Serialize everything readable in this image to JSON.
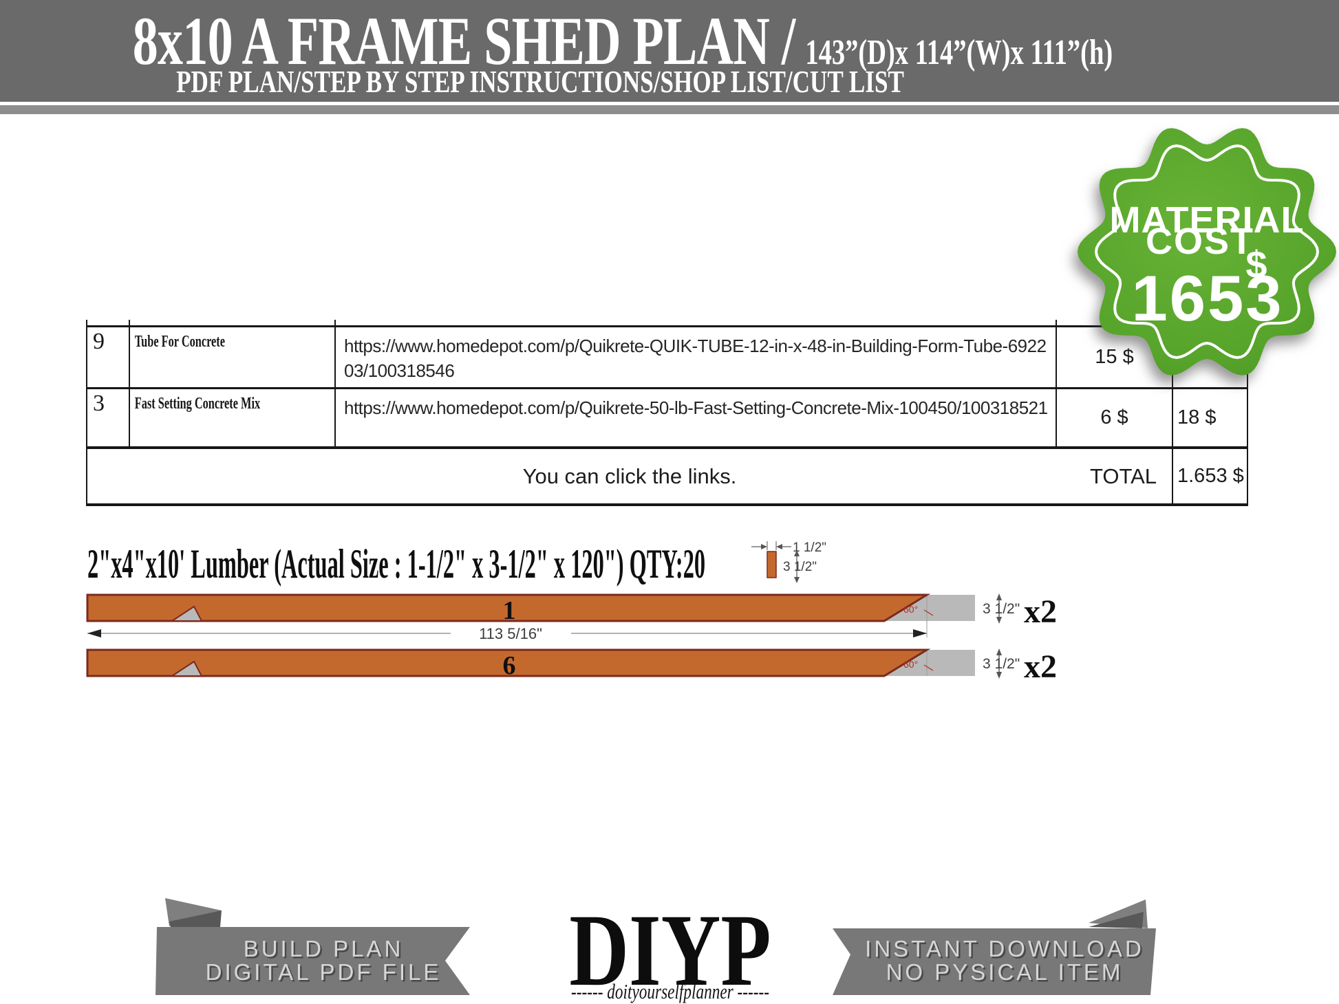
{
  "header": {
    "title": "8x10 A FRAME SHED PLAN /",
    "size_note": "143”(D)x 114”(W)x 111”(h)",
    "subtitle": "PDF PLAN/STEP BY STEP INSTRUCTIONS/SHOP LIST/CUT LIST"
  },
  "badge": {
    "line1": "MATERIAL",
    "line2": "COST",
    "currency": "$",
    "amount": "1653"
  },
  "shop_table": {
    "rows": [
      {
        "qty": "9",
        "name": "Tube For Concrete",
        "url": "https://www.homedepot.com/p/Quikrete-QUIK-TUBE-12-in-x-48-in-Building-Form-Tube-692203/100318546",
        "unit_price": "15 $",
        "row_total": ""
      },
      {
        "qty": "3",
        "name": "Fast Setting Concrete Mix",
        "url": "https://www.homedepot.com/p/Quikrete-50-lb-Fast-Setting-Concrete-Mix-100450/100318521",
        "unit_price": "6 $",
        "row_total": "18 $"
      }
    ],
    "note": "You can click the links.",
    "total_label": "TOTAL",
    "total_value": "1.653 $"
  },
  "lumber": {
    "heading": "2\"x4\"x10' Lumber (Actual Size : 1-1/2\" x 3-1/2\" x 120\") QTY:20",
    "swatch": {
      "width_label": "1 1/2\"",
      "thickness_label": "3 1/2\""
    },
    "bars": [
      {
        "label": "1",
        "count": "x2",
        "height_label": "3 1/2\"",
        "angle": "60°",
        "length": "113 5/16\""
      },
      {
        "label": "6",
        "count": "x2",
        "height_label": "3 1/2\"",
        "angle": "60°"
      }
    ]
  },
  "footer": {
    "left_ribbon": {
      "line1": "BUILD PLAN",
      "line2": "DIGITAL PDF FILE"
    },
    "logo": {
      "name": "DIYP",
      "tagline": "------ doityourselfplanner ------"
    },
    "right_ribbon": {
      "line1": "INSTANT DOWNLOAD",
      "line2": "NO PYSICAL ITEM"
    }
  },
  "colors": {
    "header_bg": "#6a6a6a",
    "stripe": "#8d8d8d",
    "badge_green": "#57a42b",
    "lumber_orange": "#c4692e",
    "cut_maroon": "#7b2a1d",
    "waste_gray": "#b9b9b9",
    "ribbon_gray": "#787878"
  }
}
